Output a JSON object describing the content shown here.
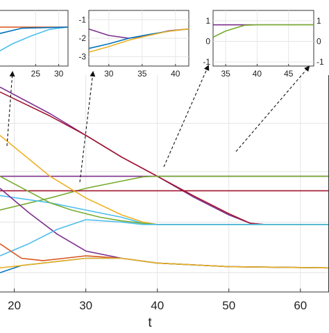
{
  "chart_data": {
    "type": "line",
    "main": {
      "xlabel": "t",
      "ylabel": "",
      "title": "",
      "xlim": [
        18,
        64
      ],
      "ylim": [
        -4,
        5
      ],
      "xticks": [
        20,
        30,
        40,
        50,
        60
      ],
      "grid": true,
      "series": [
        {
          "color": "#7e2f8e",
          "x": [
            18,
            25,
            30,
            35,
            40,
            45,
            50,
            53,
            55,
            60,
            64
          ],
          "y": [
            4.5,
            3.4,
            2.5,
            1.6,
            0.8,
            -0.05,
            -0.8,
            -1.15,
            -1.2,
            -1.2,
            -1.2
          ]
        },
        {
          "color": "#a2142f",
          "x": [
            18,
            25,
            30,
            35,
            40,
            45,
            50,
            53,
            55,
            60,
            64
          ],
          "y": [
            4.3,
            3.3,
            2.5,
            1.6,
            0.8,
            0.0,
            -0.75,
            -1.15,
            -1.2,
            -1.2,
            -1.2
          ]
        },
        {
          "color": "#7e2f8e",
          "x": [
            18,
            64
          ],
          "y": [
            0.8,
            0.8
          ]
        },
        {
          "color": "#77ac30",
          "x": [
            18,
            25,
            30,
            35,
            38,
            40,
            50,
            64
          ],
          "y": [
            -0.6,
            -0.1,
            0.3,
            0.6,
            0.78,
            0.8,
            0.8,
            0.8
          ]
        },
        {
          "color": "#a2142f",
          "x": [
            18,
            64
          ],
          "y": [
            0.2,
            0.2
          ]
        },
        {
          "color": "#edb120",
          "x": [
            18,
            25,
            30,
            35,
            38,
            40,
            64
          ],
          "y": [
            2.5,
            0.8,
            -0.1,
            -0.8,
            -1.1,
            -1.2,
            -1.2
          ]
        },
        {
          "color": "#4dbeee",
          "x": [
            18,
            25,
            30,
            35,
            38,
            40,
            64
          ],
          "y": [
            0.0,
            -0.3,
            -0.6,
            -0.9,
            -1.15,
            -1.2,
            -1.2
          ]
        },
        {
          "color": "#77ac30",
          "x": [
            18,
            25,
            28,
            32,
            35,
            38,
            40,
            64
          ],
          "y": [
            0.8,
            -0.3,
            -0.6,
            -0.9,
            -1.05,
            -1.15,
            -1.2,
            -1.2
          ]
        },
        {
          "color": "#7e2f8e",
          "x": [
            18,
            22,
            26,
            30,
            35,
            40,
            50,
            64
          ],
          "y": [
            0.3,
            -0.7,
            -1.6,
            -2.3,
            -2.6,
            -2.8,
            -2.95,
            -3.0
          ]
        },
        {
          "color": "#4dbeee",
          "x": [
            18,
            22,
            26,
            30,
            35,
            38,
            40,
            64
          ],
          "y": [
            -2.5,
            -2.0,
            -1.4,
            -1.0,
            -1.1,
            -1.2,
            -1.2,
            -1.2
          ]
        },
        {
          "color": "#d95319",
          "x": [
            18,
            21,
            24,
            27,
            30,
            35,
            40,
            50,
            64
          ],
          "y": [
            -2.0,
            -2.6,
            -2.7,
            -2.6,
            -2.5,
            -2.6,
            -2.8,
            -2.95,
            -3.0
          ]
        },
        {
          "color": "#0072bd",
          "x": [
            18,
            21,
            24,
            27,
            30,
            35,
            40,
            50,
            64
          ],
          "y": [
            -3.2,
            -2.9,
            -2.8,
            -2.7,
            -2.6,
            -2.6,
            -2.8,
            -2.95,
            -3.0
          ]
        },
        {
          "color": "#edb120",
          "x": [
            18,
            21,
            24,
            27,
            30,
            35,
            40,
            50,
            64
          ],
          "y": [
            -3.0,
            -2.9,
            -2.8,
            -2.7,
            -2.6,
            -2.6,
            -2.8,
            -2.95,
            -3.0
          ]
        }
      ]
    },
    "insets": [
      {
        "xlim": [
          17,
          32
        ],
        "ylim": [
          -3.5,
          1.5
        ],
        "xticks": [
          25,
          30
        ],
        "yticks": [],
        "series": [
          {
            "color": "#d95319",
            "x": [
              17,
              32
            ],
            "y": [
              0.0,
              0.0
            ]
          },
          {
            "color": "#4dbeee",
            "x": [
              17,
              20,
              24,
              28,
              32
            ],
            "y": [
              -2.2,
              -1.5,
              -0.8,
              -0.2,
              0.0
            ]
          },
          {
            "color": "#0072bd",
            "x": [
              17,
              22,
              32
            ],
            "y": [
              -0.6,
              -0.1,
              0.0
            ]
          }
        ]
      },
      {
        "xlim": [
          27,
          42
        ],
        "ylim": [
          -3.5,
          -0.5
        ],
        "xticks": [
          30,
          35,
          40
        ],
        "yticks": [
          -1,
          -2,
          -3
        ],
        "series": [
          {
            "color": "#7e2f8e",
            "x": [
              27,
              30,
              33,
              36,
              39,
              42
            ],
            "y": [
              -1.5,
              -1.85,
              -2.0,
              -1.85,
              -1.6,
              -1.5
            ]
          },
          {
            "color": "#0072bd",
            "x": [
              27,
              30,
              33,
              36,
              39,
              42
            ],
            "y": [
              -2.55,
              -2.3,
              -2.0,
              -1.8,
              -1.62,
              -1.5
            ]
          },
          {
            "color": "#edb120",
            "x": [
              27,
              30,
              33,
              36,
              39,
              42
            ],
            "y": [
              -2.75,
              -2.45,
              -2.1,
              -1.85,
              -1.62,
              -1.5
            ]
          }
        ]
      },
      {
        "xlim": [
          33,
          49
        ],
        "ylim": [
          -1.2,
          1.5
        ],
        "xticks": [
          35,
          40,
          45
        ],
        "yticks_left": [
          1,
          0,
          -1
        ],
        "yticks_right": [
          1,
          0,
          -1
        ],
        "series": [
          {
            "color": "#7e2f8e",
            "x": [
              33,
              38,
              49
            ],
            "y": [
              0.8,
              0.8,
              0.8
            ]
          },
          {
            "color": "#77ac30",
            "x": [
              33,
              35,
              38,
              40,
              49
            ],
            "y": [
              0.2,
              0.5,
              0.78,
              0.8,
              0.8
            ]
          }
        ]
      }
    ]
  }
}
